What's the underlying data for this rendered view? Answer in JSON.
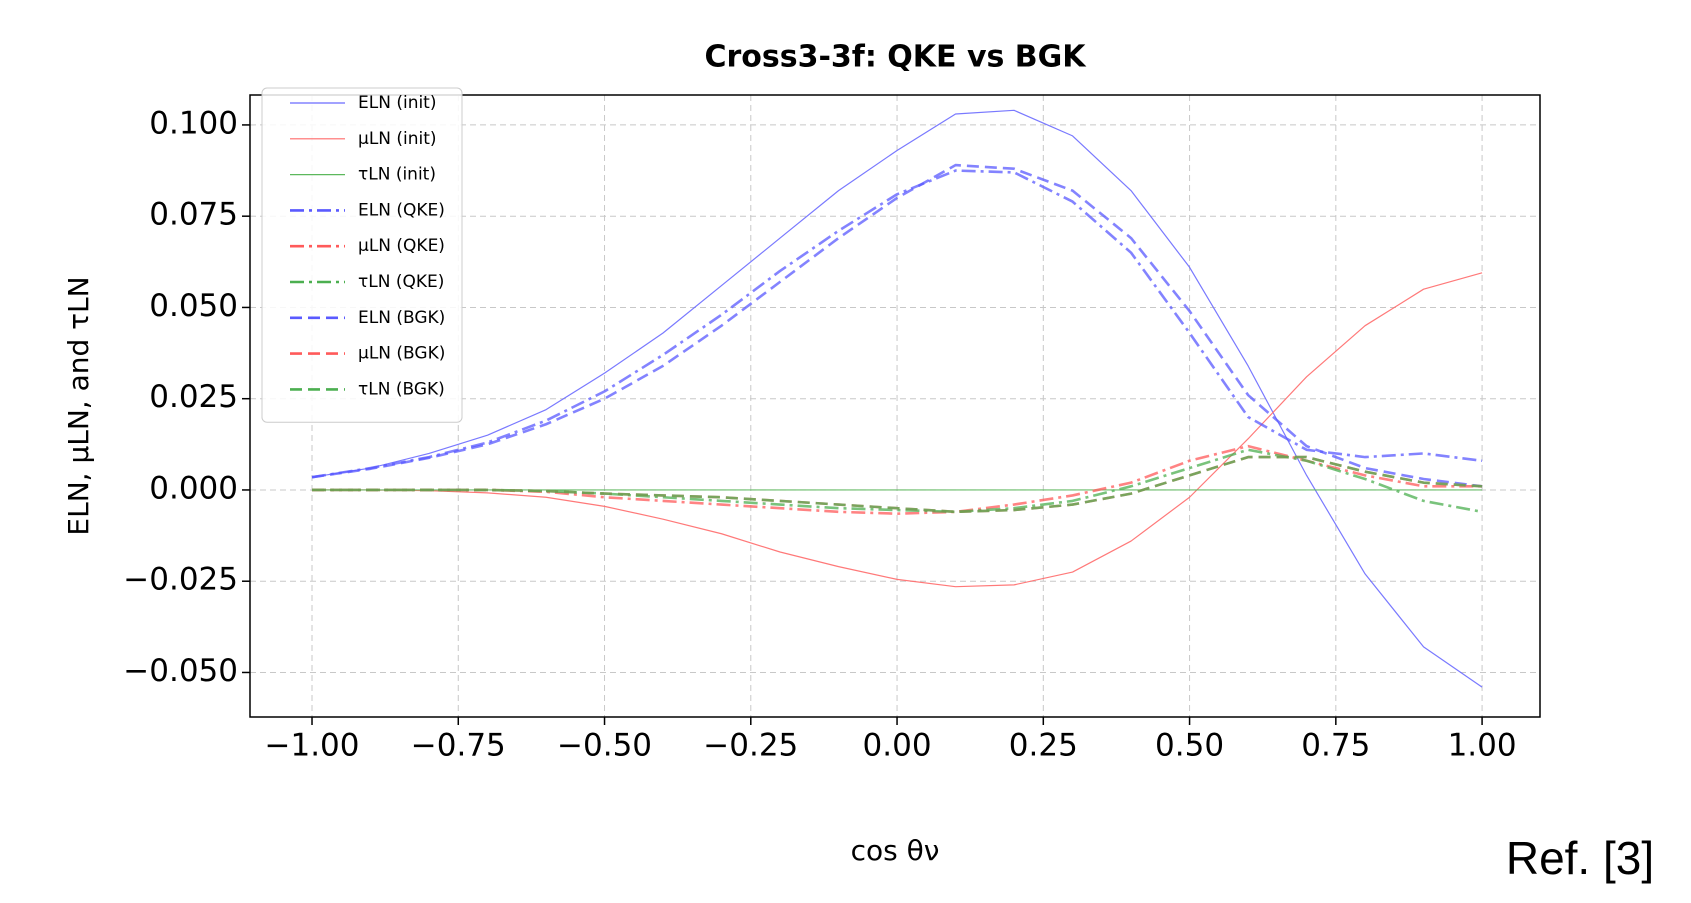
{
  "chart_data": {
    "type": "line",
    "title": "Cross3-3f: QKE vs BGK",
    "xlabel": "cos θν",
    "ylabel": "ELN, μLN, and τLN",
    "annotation": "Ref. [3]",
    "legend": "upper left",
    "grid": true,
    "xlim": [
      -1.106,
      1.099
    ],
    "ylim": [
      -0.0622,
      0.1082
    ],
    "xticks": [
      {
        "value": -1,
        "label": "−1.00"
      },
      {
        "value": -0.75,
        "label": "−0.75"
      },
      {
        "value": -0.5,
        "label": "−0.50"
      },
      {
        "value": -0.25,
        "label": "−0.25"
      },
      {
        "value": 0,
        "label": "0.00"
      },
      {
        "value": 0.25,
        "label": "0.25"
      },
      {
        "value": 0.5,
        "label": "0.50"
      },
      {
        "value": 0.75,
        "label": "0.75"
      },
      {
        "value": 1,
        "label": "1.00"
      }
    ],
    "yticks": [
      {
        "value": -0.05,
        "label": "−0.050"
      },
      {
        "value": -0.025,
        "label": "−0.025"
      },
      {
        "value": 0,
        "label": "0.000"
      },
      {
        "value": 0.025,
        "label": "0.025"
      },
      {
        "value": 0.05,
        "label": "0.050"
      },
      {
        "value": 0.075,
        "label": "0.075"
      },
      {
        "value": 0.1,
        "label": "0.100"
      }
    ],
    "x": [
      -1,
      -0.9,
      -0.8,
      -0.7,
      -0.6,
      -0.5,
      -0.4,
      -0.3,
      -0.2,
      -0.1,
      0,
      0.1,
      0.2,
      0.3,
      0.4,
      0.5,
      0.6,
      0.7,
      0.8,
      0.9,
      1
    ],
    "series": [
      {
        "name": "ELN (init)",
        "color": "#6a6aff",
        "linestyle": "solid",
        "values": [
          0.0035,
          0.006,
          0.01,
          0.015,
          0.022,
          0.032,
          0.043,
          0.056,
          0.069,
          0.082,
          0.093,
          0.103,
          0.104,
          0.097,
          0.082,
          0.061,
          0.034,
          0.004,
          -0.023,
          -0.043,
          -0.054
        ]
      },
      {
        "name": "μLN (init)",
        "color": "#ff6a6a",
        "linestyle": "solid",
        "values": [
          0,
          0,
          -0.0002,
          -0.0008,
          -0.002,
          -0.0045,
          -0.008,
          -0.012,
          -0.017,
          -0.021,
          -0.0245,
          -0.0265,
          -0.026,
          -0.0225,
          -0.014,
          -0.002,
          0.014,
          0.031,
          0.045,
          0.055,
          0.0595
        ]
      },
      {
        "name": "τLN (init)",
        "color": "#5cb85c",
        "linestyle": "solid",
        "values": [
          0,
          0,
          0,
          0,
          0,
          0,
          0,
          0,
          0,
          0,
          0,
          0,
          0,
          0,
          0,
          0,
          0,
          0,
          0,
          0,
          0
        ]
      },
      {
        "name": "ELN (QKE)",
        "color": "#5a5aff",
        "linestyle": "dashdot",
        "values": [
          0.0035,
          0.006,
          0.009,
          0.013,
          0.019,
          0.027,
          0.037,
          0.048,
          0.06,
          0.071,
          0.081,
          0.0875,
          0.087,
          0.079,
          0.065,
          0.043,
          0.02,
          0.011,
          0.009,
          0.01,
          0.008
        ]
      },
      {
        "name": "μLN (QKE)",
        "color": "#ff5a5a",
        "linestyle": "dashdot",
        "values": [
          0,
          0,
          0,
          0,
          -0.0005,
          -0.002,
          -0.003,
          -0.004,
          -0.005,
          -0.006,
          -0.0065,
          -0.006,
          -0.004,
          -0.0015,
          0.002,
          0.008,
          0.012,
          0.008,
          0.004,
          0.001,
          0.001
        ]
      },
      {
        "name": "τLN (QKE)",
        "color": "#4caf50",
        "linestyle": "dashdot",
        "values": [
          0,
          0,
          0,
          0,
          -0.0003,
          -0.001,
          -0.002,
          -0.003,
          -0.004,
          -0.005,
          -0.0055,
          -0.006,
          -0.005,
          -0.003,
          0.001,
          0.006,
          0.011,
          0.008,
          0.003,
          -0.003,
          -0.006
        ]
      },
      {
        "name": "ELN (BGK)",
        "color": "#5a5aff",
        "linestyle": "dashed",
        "values": [
          0.0035,
          0.0058,
          0.0088,
          0.0125,
          0.018,
          0.025,
          0.034,
          0.045,
          0.057,
          0.069,
          0.08,
          0.089,
          0.088,
          0.082,
          0.069,
          0.049,
          0.026,
          0.012,
          0.006,
          0.003,
          0.001
        ]
      },
      {
        "name": "μLN (BGK)",
        "color": "#ff5a5a",
        "linestyle": "dashed",
        "values": [
          0,
          0,
          0,
          0,
          -0.0003,
          -0.001,
          -0.0015,
          -0.002,
          -0.003,
          -0.004,
          -0.005,
          -0.006,
          -0.0055,
          -0.004,
          -0.001,
          0.004,
          0.009,
          0.009,
          0.005,
          0.002,
          0.001
        ]
      },
      {
        "name": "τLN (BGK)",
        "color": "#4caf50",
        "linestyle": "dashed",
        "values": [
          0,
          0,
          0,
          0,
          -0.0003,
          -0.001,
          -0.0015,
          -0.002,
          -0.003,
          -0.004,
          -0.005,
          -0.006,
          -0.0055,
          -0.004,
          -0.001,
          0.004,
          0.009,
          0.009,
          0.005,
          0.002,
          0.001
        ]
      }
    ]
  }
}
